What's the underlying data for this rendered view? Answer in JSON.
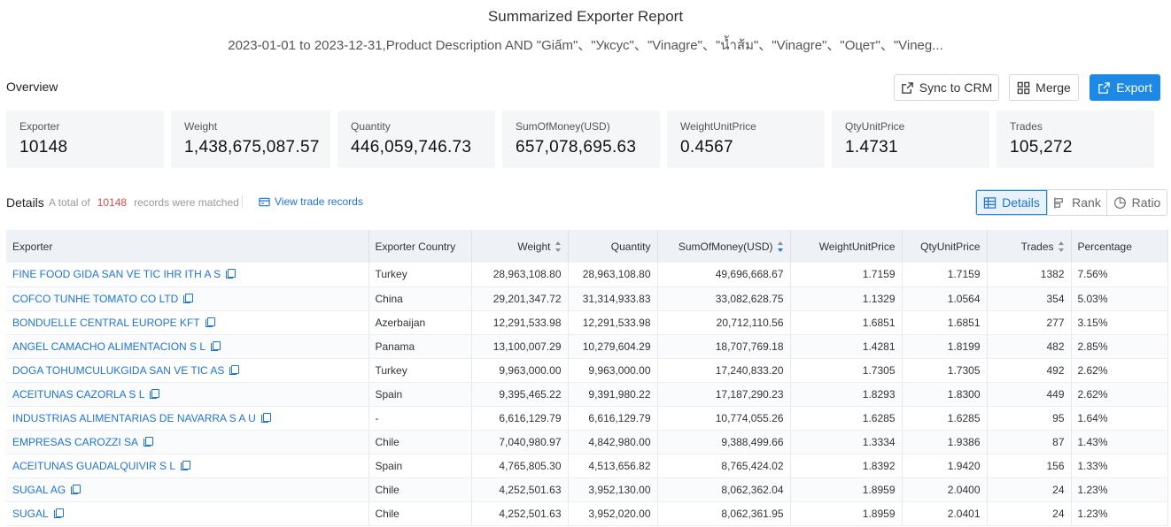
{
  "report": {
    "title": "Summarized Exporter Report",
    "subtitle": "2023-01-01 to 2023-12-31,Product Description AND \"Giấm\"、\"Уксус\"、\"Vinagre\"、\"น้ำส้ม\"、\"Vinagre\"、\"Оцет\"、\"Vineg..."
  },
  "overview": {
    "label": "Overview",
    "buttons": {
      "sync": "Sync to CRM",
      "merge": "Merge",
      "export": "Export"
    },
    "stats": [
      {
        "label": "Exporter",
        "value": "10148"
      },
      {
        "label": "Weight",
        "value": "1,438,675,087.57"
      },
      {
        "label": "Quantity",
        "value": "446,059,746.73"
      },
      {
        "label": "SumOfMoney(USD)",
        "value": "657,078,695.63"
      },
      {
        "label": "WeightUnitPrice",
        "value": "0.4567"
      },
      {
        "label": "QtyUnitPrice",
        "value": "1.4731"
      },
      {
        "label": "Trades",
        "value": "105,272"
      }
    ]
  },
  "details": {
    "label": "Details",
    "prefix": "A total of",
    "count": "10148",
    "suffix": "records were matched",
    "view_link": "View trade records",
    "tabs": {
      "details": "Details",
      "rank": "Rank",
      "ratio": "Ratio"
    }
  },
  "table": {
    "columns": [
      "Exporter",
      "Exporter Country",
      "Weight",
      "Quantity",
      "SumOfMoney(USD)",
      "WeightUnitPrice",
      "QtyUnitPrice",
      "Trades",
      "Percentage"
    ],
    "rows": [
      [
        "FINE FOOD GIDA SAN VE TIC IHR ITH A S",
        "Turkey",
        "28,963,108.80",
        "28,963,108.80",
        "49,696,668.67",
        "1.7159",
        "1.7159",
        "1382",
        "7.56%"
      ],
      [
        "COFCO TUNHE TOMATO CO LTD",
        "China",
        "29,201,347.72",
        "31,314,933.83",
        "33,082,628.75",
        "1.1329",
        "1.0564",
        "354",
        "5.03%"
      ],
      [
        "BONDUELLE CENTRAL EUROPE KFT",
        "Azerbaijan",
        "12,291,533.98",
        "12,291,533.98",
        "20,712,110.56",
        "1.6851",
        "1.6851",
        "277",
        "3.15%"
      ],
      [
        "ANGEL CAMACHO ALIMENTACION S L",
        "Panama",
        "13,100,007.29",
        "10,279,604.29",
        "18,707,769.18",
        "1.4281",
        "1.8199",
        "482",
        "2.85%"
      ],
      [
        "DOGA TOHUMCULUKGIDA SAN VE TIC AS",
        "Turkey",
        "9,963,000.00",
        "9,963,000.00",
        "17,240,833.20",
        "1.7305",
        "1.7305",
        "492",
        "2.62%"
      ],
      [
        "ACEITUNAS CAZORLA S L",
        "Spain",
        "9,395,465.22",
        "9,391,980.22",
        "17,187,290.23",
        "1.8293",
        "1.8300",
        "449",
        "2.62%"
      ],
      [
        "INDUSTRIAS ALIMENTARIAS DE NAVARRA S A U",
        "-",
        "6,616,129.79",
        "6,616,129.79",
        "10,774,055.26",
        "1.6285",
        "1.6285",
        "95",
        "1.64%"
      ],
      [
        "EMPRESAS CAROZZI SA",
        "Chile",
        "7,040,980.97",
        "4,842,980.00",
        "9,388,499.66",
        "1.3334",
        "1.9386",
        "87",
        "1.43%"
      ],
      [
        "ACEITUNAS GUADALQUIVIR S L",
        "Spain",
        "4,765,805.30",
        "4,513,656.82",
        "8,765,424.02",
        "1.8392",
        "1.9420",
        "156",
        "1.33%"
      ],
      [
        "SUGAL AG",
        "Chile",
        "4,252,501.63",
        "3,952,130.00",
        "8,062,362.04",
        "1.8959",
        "2.0400",
        "24",
        "1.23%"
      ],
      [
        "SUGAL",
        "Chile",
        "4,252,501.63",
        "3,952,020.00",
        "8,062,361.95",
        "1.8959",
        "2.0401",
        "24",
        "1.23%"
      ]
    ]
  },
  "colors": {
    "accent": "#1e88e5",
    "link": "#1e73d8",
    "count": "#e5484d",
    "header_bg": "#eef1f5",
    "stat_bg": "#f5f6f8"
  },
  "icons": [
    "share-icon",
    "merge-icon",
    "export-icon",
    "trade-records-icon",
    "grid-icon",
    "rank-icon",
    "ratio-icon",
    "copy-icon",
    "sort-icon"
  ]
}
